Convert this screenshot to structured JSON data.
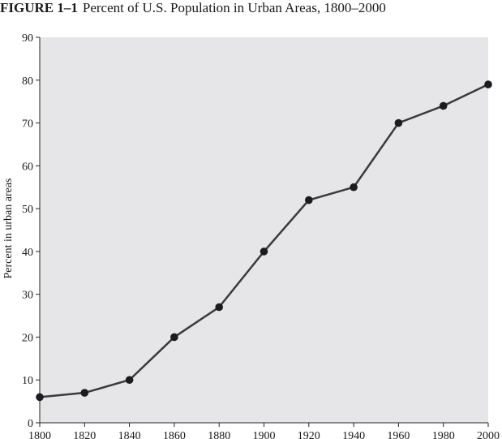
{
  "figure": {
    "label": "FIGURE 1–1",
    "title": "Percent of U.S. Population in Urban Areas, 1800–2000"
  },
  "chart_data": {
    "type": "line",
    "title": "Percent of U.S. Population in Urban Areas, 1800–2000",
    "xlabel": "",
    "ylabel": "Percent in urban areas",
    "x": [
      1800,
      1820,
      1840,
      1860,
      1880,
      1900,
      1920,
      1940,
      1960,
      1980,
      2000
    ],
    "series": [
      {
        "values": [
          6,
          7,
          10,
          20,
          27,
          40,
          52,
          55,
          70,
          74,
          79
        ]
      }
    ],
    "xlim": [
      1800,
      2000
    ],
    "ylim": [
      0,
      90
    ],
    "xticks": [
      1800,
      1820,
      1840,
      1860,
      1880,
      1900,
      1920,
      1940,
      1960,
      1980,
      2000
    ],
    "yticks": [
      0,
      10,
      20,
      30,
      40,
      50,
      60,
      70,
      80,
      90
    ],
    "grid": false,
    "legend": "none",
    "colors": {
      "plot_background": "#e6e6e8",
      "line": "#3a3a3c",
      "marker": "#1c1c1e",
      "axis": "#222222"
    },
    "marker": "filled-circle"
  }
}
